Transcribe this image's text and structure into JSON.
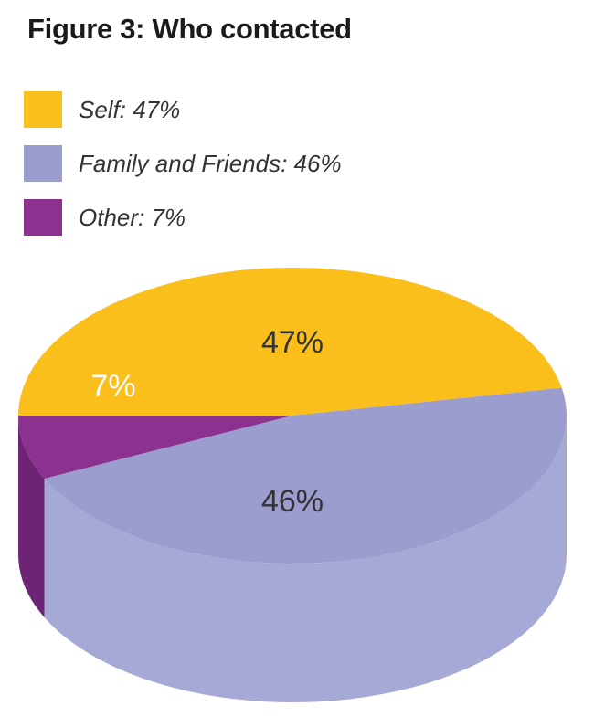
{
  "title": "Figure 3: Who contacted",
  "chart_data": {
    "type": "pie",
    "style": "3d",
    "slices": [
      {
        "name": "Self",
        "value": 47,
        "legend": "Self: 47%",
        "label": "47%",
        "color": "#FBBF1B",
        "side_color": "#F2B418",
        "label_color": "#333333"
      },
      {
        "name": "Family and Friends",
        "value": 46,
        "legend": "Family and Friends: 46%",
        "label": "46%",
        "color": "#9A9DCE",
        "side_color": "#A6A9D6",
        "label_color": "#333333"
      },
      {
        "name": "Other",
        "value": 7,
        "legend": "Other: 7%",
        "label": "7%",
        "color": "#8B3190",
        "side_color": "#6E2475",
        "label_color": "#ffffff"
      }
    ],
    "legend_position": "top-left"
  }
}
